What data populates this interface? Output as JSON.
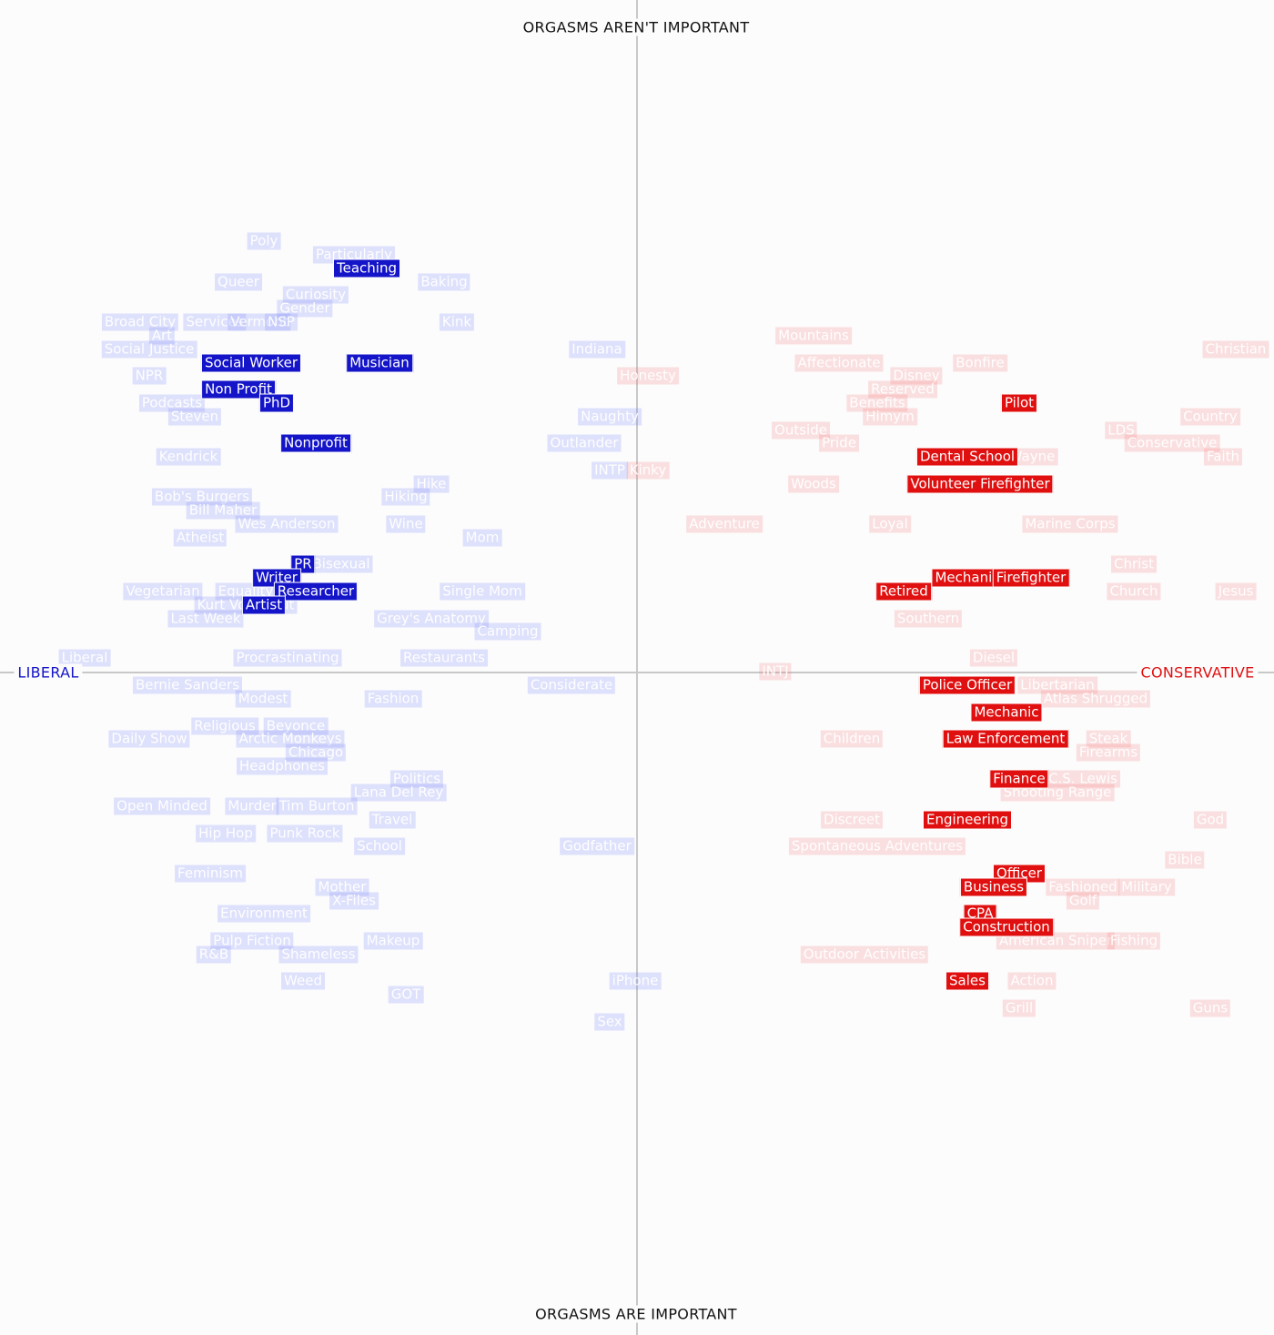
{
  "chart_data": {
    "type": "scatter",
    "title": "",
    "axes": {
      "top": "ORGASMS AREN'T IMPORTANT",
      "bottom": "ORGASMS ARE IMPORTANT",
      "left": "LIBERAL",
      "right": "CONSERVATIVE"
    },
    "colors": {
      "liberal": "#1414c8",
      "conservative": "#e01010",
      "axis_line": "#c8c8c8"
    },
    "xlim": [
      -700,
      700
    ],
    "ylim": [
      -730,
      740
    ],
    "points": [
      {
        "label": "Poly",
        "x": -410,
        "y": 474,
        "side": "l"
      },
      {
        "label": "Particularly",
        "x": -311,
        "y": 459,
        "side": "l"
      },
      {
        "label": "Queer",
        "x": -438,
        "y": 429,
        "side": "l"
      },
      {
        "label": "Baking",
        "x": -212,
        "y": 429,
        "side": "l"
      },
      {
        "label": "Curiosity",
        "x": -353,
        "y": 415,
        "side": "l"
      },
      {
        "label": "Gender",
        "x": -365,
        "y": 400,
        "side": "l"
      },
      {
        "label": "Broad City",
        "x": -546,
        "y": 385,
        "side": "l"
      },
      {
        "label": "Services",
        "x": -464,
        "y": 385,
        "side": "l"
      },
      {
        "label": "Vermont",
        "x": -415,
        "y": 385,
        "side": "l"
      },
      {
        "label": "NSP",
        "x": -391,
        "y": 385,
        "side": "l"
      },
      {
        "label": "Kink",
        "x": -198,
        "y": 385,
        "side": "l"
      },
      {
        "label": "Art",
        "x": -522,
        "y": 370,
        "side": "l"
      },
      {
        "label": "Social Justice",
        "x": -536,
        "y": 355,
        "side": "l"
      },
      {
        "label": "NPR",
        "x": -536,
        "y": 326,
        "side": "l"
      },
      {
        "label": "Podcasts",
        "x": -511,
        "y": 296,
        "side": "l"
      },
      {
        "label": "Steven",
        "x": -486,
        "y": 281,
        "side": "l"
      },
      {
        "label": "Kendrick",
        "x": -493,
        "y": 237,
        "side": "l"
      },
      {
        "label": "Bob's Burgers",
        "x": -478,
        "y": 193,
        "side": "l"
      },
      {
        "label": "Bill Maher",
        "x": -455,
        "y": 178,
        "side": "l"
      },
      {
        "label": "Wes Anderson",
        "x": -385,
        "y": 163,
        "side": "l"
      },
      {
        "label": "Atheist",
        "x": -480,
        "y": 148,
        "side": "l"
      },
      {
        "label": "Equality",
        "x": -430,
        "y": 89,
        "side": "l"
      },
      {
        "label": "Vegetarian",
        "x": -521,
        "y": 89,
        "side": "l"
      },
      {
        "label": "Kurt Vonnegut",
        "x": -430,
        "y": 74,
        "side": "l"
      },
      {
        "label": "Last Week",
        "x": -474,
        "y": 59,
        "side": "l"
      },
      {
        "label": "Procrastinating",
        "x": -384,
        "y": 16,
        "side": "l"
      },
      {
        "label": "Liberal",
        "x": -607,
        "y": 16,
        "side": "l"
      },
      {
        "label": "Bernie Sanders",
        "x": -494,
        "y": -14,
        "side": "l"
      },
      {
        "label": "Modest",
        "x": -411,
        "y": -29,
        "side": "l"
      },
      {
        "label": "Fashion",
        "x": -268,
        "y": -29,
        "side": "l"
      },
      {
        "label": "Religious",
        "x": -453,
        "y": -59,
        "side": "l"
      },
      {
        "label": "Beyonce",
        "x": -375,
        "y": -59,
        "side": "l"
      },
      {
        "label": "Daily Show",
        "x": -536,
        "y": -73,
        "side": "l"
      },
      {
        "label": "Arctic Monkeys",
        "x": -381,
        "y": -73,
        "side": "l"
      },
      {
        "label": "Chicago",
        "x": -353,
        "y": -88,
        "side": "l"
      },
      {
        "label": "Headphones",
        "x": -390,
        "y": -103,
        "side": "l"
      },
      {
        "label": "Politics",
        "x": -242,
        "y": -117,
        "side": "l"
      },
      {
        "label": "Lana Del Rey",
        "x": -262,
        "y": -132,
        "side": "l"
      },
      {
        "label": "Open Minded",
        "x": -522,
        "y": -147,
        "side": "l"
      },
      {
        "label": "Murder",
        "x": -423,
        "y": -147,
        "side": "l"
      },
      {
        "label": "Tim Burton",
        "x": -352,
        "y": -147,
        "side": "l"
      },
      {
        "label": "Travel",
        "x": -269,
        "y": -162,
        "side": "l"
      },
      {
        "label": "Hip Hop",
        "x": -452,
        "y": -177,
        "side": "l"
      },
      {
        "label": "Punk Rock",
        "x": -365,
        "y": -177,
        "side": "l"
      },
      {
        "label": "School",
        "x": -283,
        "y": -191,
        "side": "l"
      },
      {
        "label": "Feminism",
        "x": -469,
        "y": -221,
        "side": "l"
      },
      {
        "label": "Mother",
        "x": -324,
        "y": -236,
        "side": "l"
      },
      {
        "label": "X-Files",
        "x": -311,
        "y": -251,
        "side": "l"
      },
      {
        "label": "Environment",
        "x": -410,
        "y": -265,
        "side": "l"
      },
      {
        "label": "Makeup",
        "x": -268,
        "y": -295,
        "side": "l"
      },
      {
        "label": "Pulp Fiction",
        "x": -423,
        "y": -295,
        "side": "l"
      },
      {
        "label": "R&B",
        "x": -465,
        "y": -310,
        "side": "l"
      },
      {
        "label": "Shameless",
        "x": -350,
        "y": -310,
        "side": "l"
      },
      {
        "label": "Weed",
        "x": -367,
        "y": -339,
        "side": "l"
      },
      {
        "label": "GOT",
        "x": -254,
        "y": -354,
        "side": "l"
      },
      {
        "label": "Hiking",
        "x": -254,
        "y": 193,
        "side": "l"
      },
      {
        "label": "Hike",
        "x": -226,
        "y": 207,
        "side": "l"
      },
      {
        "label": "Wine",
        "x": -254,
        "y": 163,
        "side": "l"
      },
      {
        "label": "Mom",
        "x": -170,
        "y": 148,
        "side": "l"
      },
      {
        "label": "Single Mom",
        "x": -170,
        "y": 89,
        "side": "l"
      },
      {
        "label": "Grey's Anatomy",
        "x": -226,
        "y": 59,
        "side": "l"
      },
      {
        "label": "Camping",
        "x": -142,
        "y": 45,
        "side": "l"
      },
      {
        "label": "Restaurants",
        "x": -212,
        "y": 16,
        "side": "l"
      },
      {
        "label": "Bisexual",
        "x": -325,
        "y": 119,
        "side": "l"
      },
      {
        "label": "Indiana",
        "x": -44,
        "y": 355,
        "side": "l"
      },
      {
        "label": "Naughty",
        "x": -30,
        "y": 281,
        "side": "l"
      },
      {
        "label": "Outlander",
        "x": -58,
        "y": 252,
        "side": "l"
      },
      {
        "label": "INTP",
        "x": -30,
        "y": 222,
        "side": "l"
      },
      {
        "label": "Considerate",
        "x": -72,
        "y": -14,
        "side": "l"
      },
      {
        "label": "Godfather",
        "x": -44,
        "y": -191,
        "side": "l"
      },
      {
        "label": "iPhone",
        "x": -2,
        "y": -339,
        "side": "l"
      },
      {
        "label": "Sex",
        "x": -30,
        "y": -384,
        "side": "l"
      },
      {
        "label": "Teaching",
        "x": -297,
        "y": 444,
        "side": "l",
        "hl": true
      },
      {
        "label": "Social Worker",
        "x": -424,
        "y": 340,
        "side": "l",
        "hl": true
      },
      {
        "label": "Musician",
        "x": -283,
        "y": 340,
        "side": "l",
        "hl": true
      },
      {
        "label": "Non Profit",
        "x": -438,
        "y": 311,
        "side": "l",
        "hl": true
      },
      {
        "label": "PhD",
        "x": -396,
        "y": 296,
        "side": "l",
        "hl": true
      },
      {
        "label": "Nonprofit",
        "x": -353,
        "y": 252,
        "side": "l",
        "hl": true
      },
      {
        "label": "PR",
        "x": -367,
        "y": 119,
        "side": "l",
        "hl": true
      },
      {
        "label": "Writer",
        "x": -396,
        "y": 104,
        "side": "l",
        "hl": true
      },
      {
        "label": "Researcher",
        "x": -353,
        "y": 89,
        "side": "l",
        "hl": true
      },
      {
        "label": "Artist",
        "x": -410,
        "y": 74,
        "side": "l",
        "hl": true
      },
      {
        "label": "Honesty",
        "x": 12,
        "y": 326,
        "side": "r"
      },
      {
        "label": "Kinky",
        "x": 12,
        "y": 222,
        "side": "r"
      },
      {
        "label": "Adventure",
        "x": 96,
        "y": 163,
        "side": "r"
      },
      {
        "label": "INTJ",
        "x": 152,
        "y": 1,
        "side": "r"
      },
      {
        "label": "Mountains",
        "x": 194,
        "y": 370,
        "side": "r"
      },
      {
        "label": "Affectionate",
        "x": 222,
        "y": 340,
        "side": "r"
      },
      {
        "label": "Bonfire",
        "x": 377,
        "y": 340,
        "side": "r"
      },
      {
        "label": "Disney",
        "x": 307,
        "y": 326,
        "side": "r"
      },
      {
        "label": "Christian",
        "x": 658,
        "y": 355,
        "side": "r"
      },
      {
        "label": "Reserved",
        "x": 292,
        "y": 311,
        "side": "r"
      },
      {
        "label": "Benefits",
        "x": 264,
        "y": 296,
        "side": "r"
      },
      {
        "label": "Himym",
        "x": 278,
        "y": 281,
        "side": "r"
      },
      {
        "label": "Country",
        "x": 630,
        "y": 281,
        "side": "r"
      },
      {
        "label": "Outside",
        "x": 180,
        "y": 266,
        "side": "r"
      },
      {
        "label": "LDS",
        "x": 532,
        "y": 266,
        "side": "r"
      },
      {
        "label": "Pride",
        "x": 222,
        "y": 252,
        "side": "r"
      },
      {
        "label": "Conservative",
        "x": 588,
        "y": 252,
        "side": "r"
      },
      {
        "label": "Wayne",
        "x": 434,
        "y": 237,
        "side": "r"
      },
      {
        "label": "Faith",
        "x": 644,
        "y": 237,
        "side": "r"
      },
      {
        "label": "Woods",
        "x": 194,
        "y": 207,
        "side": "r"
      },
      {
        "label": "Loyal",
        "x": 278,
        "y": 163,
        "side": "r"
      },
      {
        "label": "Marine Corps",
        "x": 476,
        "y": 163,
        "side": "r"
      },
      {
        "label": "Christ",
        "x": 546,
        "y": 119,
        "side": "r"
      },
      {
        "label": "Church",
        "x": 546,
        "y": 89,
        "side": "r"
      },
      {
        "label": "Jesus",
        "x": 658,
        "y": 89,
        "side": "r"
      },
      {
        "label": "Southern",
        "x": 320,
        "y": 59,
        "side": "r"
      },
      {
        "label": "Diesel",
        "x": 392,
        "y": 16,
        "side": "r"
      },
      {
        "label": "Libertarian",
        "x": 462,
        "y": -14,
        "side": "r"
      },
      {
        "label": "Atlas Shrugged",
        "x": 504,
        "y": -29,
        "side": "r"
      },
      {
        "label": "Children",
        "x": 236,
        "y": -73,
        "side": "r"
      },
      {
        "label": "Steak",
        "x": 518,
        "y": -73,
        "side": "r"
      },
      {
        "label": "Firearms",
        "x": 518,
        "y": -88,
        "side": "r"
      },
      {
        "label": "C.S. Lewis",
        "x": 490,
        "y": -117,
        "side": "r"
      },
      {
        "label": "Shooting Range",
        "x": 462,
        "y": -132,
        "side": "r"
      },
      {
        "label": "Discreet",
        "x": 236,
        "y": -162,
        "side": "r"
      },
      {
        "label": "God",
        "x": 630,
        "y": -162,
        "side": "r"
      },
      {
        "label": "Spontaneous Adventures",
        "x": 264,
        "y": -191,
        "side": "r"
      },
      {
        "label": "Bible",
        "x": 602,
        "y": -206,
        "side": "r"
      },
      {
        "label": "Fashioned",
        "x": 490,
        "y": -236,
        "side": "r"
      },
      {
        "label": "Military",
        "x": 560,
        "y": -236,
        "side": "r"
      },
      {
        "label": "Golf",
        "x": 490,
        "y": -251,
        "side": "r"
      },
      {
        "label": "American Sniper",
        "x": 460,
        "y": -295,
        "side": "r"
      },
      {
        "label": "Fishing",
        "x": 546,
        "y": -295,
        "side": "r"
      },
      {
        "label": "Outdoor Activities",
        "x": 250,
        "y": -310,
        "side": "r"
      },
      {
        "label": "Action",
        "x": 434,
        "y": -339,
        "side": "r"
      },
      {
        "label": "Grill",
        "x": 420,
        "y": -369,
        "side": "r"
      },
      {
        "label": "Guns",
        "x": 630,
        "y": -369,
        "side": "r"
      },
      {
        "label": "Pilot",
        "x": 420,
        "y": 296,
        "side": "r",
        "hl": true
      },
      {
        "label": "Dental School",
        "x": 363,
        "y": 237,
        "side": "r",
        "hl": true
      },
      {
        "label": "Volunteer Firefighter",
        "x": 377,
        "y": 207,
        "side": "r",
        "hl": true
      },
      {
        "label": "Mechanic",
        "x": 363,
        "y": 104,
        "side": "r",
        "hl": true
      },
      {
        "label": "Firefighter",
        "x": 433,
        "y": 104,
        "side": "r",
        "hl": true
      },
      {
        "label": "Retired",
        "x": 293,
        "y": 89,
        "side": "r",
        "hl": true
      },
      {
        "label": "Police Officer",
        "x": 363,
        "y": -14,
        "side": "r",
        "hl": true
      },
      {
        "label": "Mechanic",
        "x": 406,
        "y": -44,
        "side": "r",
        "hl": true
      },
      {
        "label": "Law Enforcement",
        "x": 405,
        "y": -73,
        "side": "r",
        "hl": true
      },
      {
        "label": "Finance",
        "x": 420,
        "y": -117,
        "side": "r",
        "hl": true
      },
      {
        "label": "Engineering",
        "x": 363,
        "y": -162,
        "side": "r",
        "hl": true
      },
      {
        "label": "Officer",
        "x": 420,
        "y": -221,
        "side": "r",
        "hl": true
      },
      {
        "label": "Business",
        "x": 392,
        "y": -236,
        "side": "r",
        "hl": true
      },
      {
        "label": "CPA",
        "x": 377,
        "y": -265,
        "side": "r",
        "hl": true
      },
      {
        "label": "Construction",
        "x": 406,
        "y": -280,
        "side": "r",
        "hl": true
      },
      {
        "label": "Sales",
        "x": 363,
        "y": -339,
        "side": "r",
        "hl": true
      }
    ]
  }
}
